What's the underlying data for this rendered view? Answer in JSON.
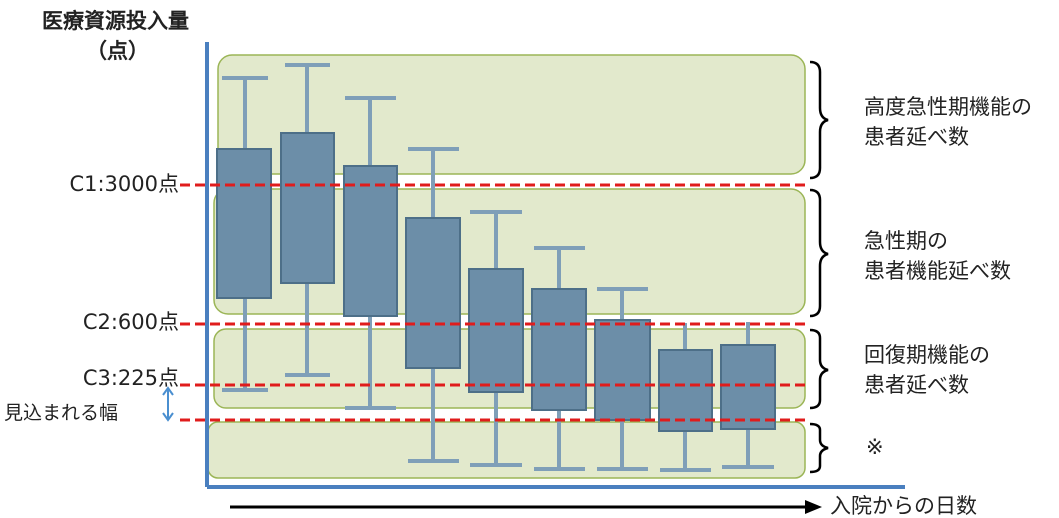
{
  "chart_data": {
    "type": "boxplot",
    "ylabel": "医療資源投入量",
    "yunit": "（点）",
    "xlabel": "入院からの日数",
    "thresholds": [
      {
        "label": "C1:3000点",
        "value": 3000
      },
      {
        "label": "C2:600点",
        "value": 600
      },
      {
        "label": "C3:225点",
        "value": 225
      }
    ],
    "margin_label": "見込まれる幅",
    "regions": [
      {
        "label_lines": [
          "高度急性期機能の",
          "患者延べ数"
        ]
      },
      {
        "label_lines": [
          "急性期の",
          "患者機能延べ数"
        ]
      },
      {
        "label_lines": [
          "回復期機能の",
          "患者延べ数"
        ]
      },
      {
        "label_lines": [
          "※"
        ]
      }
    ]
  },
  "colors": {
    "region_fill": "#e2e9cc",
    "region_border": "#9bb556",
    "box_fill": "#6c8ea8",
    "box_border": "#4d6f88",
    "whisker": "#7f9fb8",
    "threshold_line": "#e01c1c",
    "axis": "#4a7fbf",
    "margin_arrow": "#4a8fd0"
  }
}
